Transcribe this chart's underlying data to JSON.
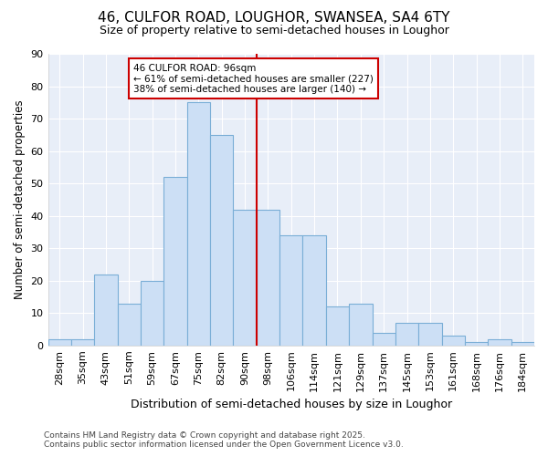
{
  "title1": "46, CULFOR ROAD, LOUGHOR, SWANSEA, SA4 6TY",
  "title2": "Size of property relative to semi-detached houses in Loughor",
  "categories": [
    "28sqm",
    "35sqm",
    "43sqm",
    "51sqm",
    "59sqm",
    "67sqm",
    "75sqm",
    "82sqm",
    "90sqm",
    "98sqm",
    "106sqm",
    "114sqm",
    "121sqm",
    "129sqm",
    "137sqm",
    "145sqm",
    "153sqm",
    "161sqm",
    "168sqm",
    "176sqm",
    "184sqm"
  ],
  "values": [
    2,
    2,
    22,
    13,
    20,
    52,
    75,
    65,
    42,
    42,
    34,
    34,
    12,
    13,
    4,
    7,
    7,
    3,
    1,
    2,
    1
  ],
  "bar_color": "#ccdff5",
  "bar_edge_color": "#7aaed6",
  "plot_bg_color": "#e8eef8",
  "fig_bg_color": "#ffffff",
  "ylabel": "Number of semi-detached properties",
  "xlabel": "Distribution of semi-detached houses by size in Loughor",
  "vline_color": "#cc0000",
  "annotation_title": "46 CULFOR ROAD: 96sqm",
  "annotation_line1": "← 61% of semi-detached houses are smaller (227)",
  "annotation_line2": "38% of semi-detached houses are larger (140) →",
  "annotation_box_color": "#ffffff",
  "annotation_box_edge": "#cc0000",
  "footer1": "Contains HM Land Registry data © Crown copyright and database right 2025.",
  "footer2": "Contains public sector information licensed under the Open Government Licence v3.0.",
  "ylim": [
    0,
    90
  ],
  "yticks": [
    0,
    10,
    20,
    30,
    40,
    50,
    60,
    70,
    80,
    90
  ],
  "grid_color": "#ffffff",
  "title1_fontsize": 11,
  "title2_fontsize": 9,
  "tick_fontsize": 8,
  "ylabel_fontsize": 8.5,
  "xlabel_fontsize": 9,
  "footer_fontsize": 6.5
}
